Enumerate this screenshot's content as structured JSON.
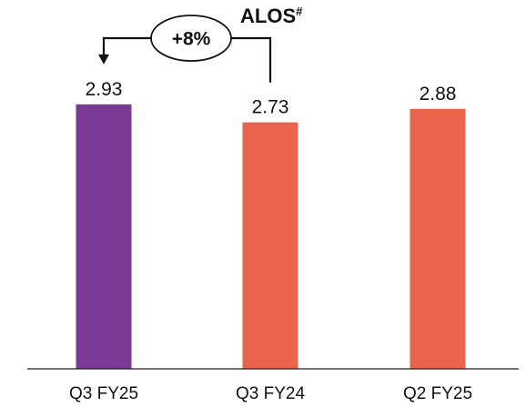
{
  "chart_data": {
    "type": "bar",
    "title": "ALOS",
    "title_superscript": "#",
    "categories": [
      "Q3 FY25",
      "Q3 FY24",
      "Q2 FY25"
    ],
    "values": [
      2.93,
      2.73,
      2.88
    ],
    "value_labels": [
      "2.93",
      "2.73",
      "2.88"
    ],
    "colors": [
      "#7B3A96",
      "#EA644D",
      "#EA644D"
    ],
    "ylim": [
      0,
      3.2
    ],
    "grid": false,
    "legend": "none",
    "annotation": {
      "text": "+8%",
      "from_category": "Q3 FY24",
      "to_category": "Q3 FY25"
    }
  }
}
